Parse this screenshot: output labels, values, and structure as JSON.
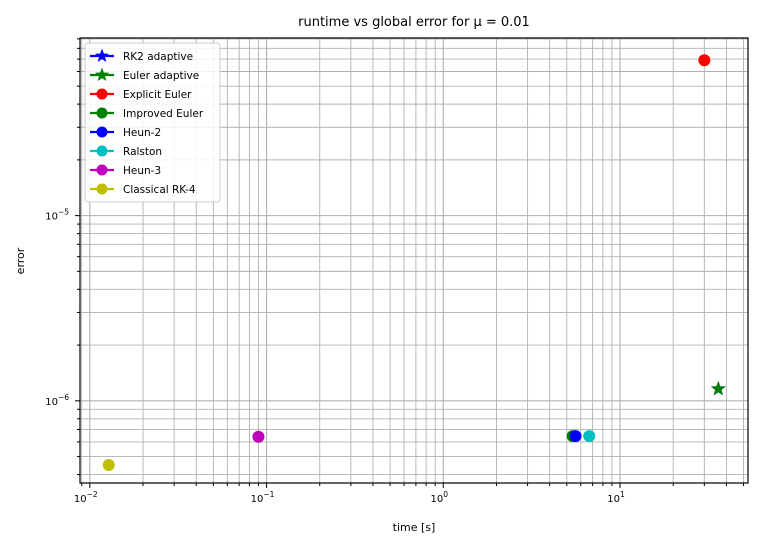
{
  "chart_data": {
    "type": "scatter",
    "title": "runtime vs global error for μ = 0.01",
    "xlabel": "time [s]",
    "ylabel": "error",
    "xscale": "log",
    "yscale": "log",
    "xlim": [
      0.0088,
      53
    ],
    "ylim": [
      3.6e-07,
      9.1e-05
    ],
    "grid": "major and minor",
    "legend_position": "top-left",
    "x_tick_labels": [
      {
        "value": 0.01,
        "base": "10",
        "exp": "−2"
      },
      {
        "value": 0.1,
        "base": "10",
        "exp": "−1"
      },
      {
        "value": 1,
        "base": "10",
        "exp": "0"
      },
      {
        "value": 10,
        "base": "10",
        "exp": "1"
      }
    ],
    "y_tick_labels": [
      {
        "value": 1e-06,
        "base": "10",
        "exp": "−6"
      },
      {
        "value": 1e-05,
        "base": "10",
        "exp": "−5"
      }
    ],
    "series": [
      {
        "name": "RK2 adaptive",
        "color": "#0000ff",
        "marker": "star",
        "points": [
          [
            36,
            1.16e-06
          ]
        ]
      },
      {
        "name": "Euler adaptive",
        "color": "#008000",
        "marker": "star",
        "points": [
          [
            36,
            1.16e-06
          ]
        ]
      },
      {
        "name": "Explicit Euler",
        "color": "#ff0000",
        "marker": "circle",
        "points": [
          [
            30,
            6.9e-05
          ]
        ]
      },
      {
        "name": "Improved Euler",
        "color": "#008000",
        "marker": "circle",
        "points": [
          [
            5.4,
            6.45e-07
          ]
        ]
      },
      {
        "name": "Heun-2",
        "color": "#0000ff",
        "marker": "circle",
        "points": [
          [
            5.6,
            6.45e-07
          ]
        ]
      },
      {
        "name": "Ralston",
        "color": "#00bfbf",
        "marker": "circle",
        "points": [
          [
            6.7,
            6.45e-07
          ]
        ]
      },
      {
        "name": "Heun-3",
        "color": "#bf00bf",
        "marker": "circle",
        "points": [
          [
            0.09,
            6.4e-07
          ]
        ]
      },
      {
        "name": "Classical RK-4",
        "color": "#bfbf00",
        "marker": "circle",
        "points": [
          [
            0.0128,
            4.5e-07
          ]
        ]
      }
    ]
  }
}
